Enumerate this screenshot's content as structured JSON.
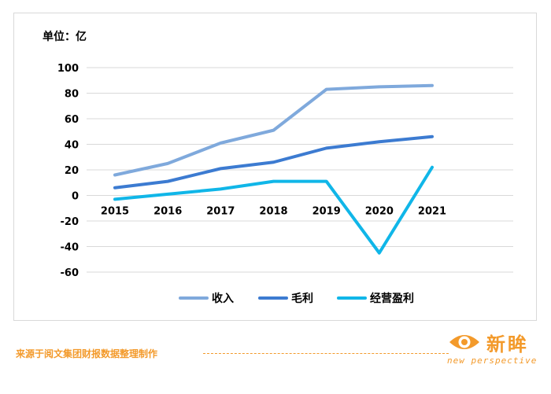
{
  "chart_data": {
    "type": "line",
    "title": "",
    "unit_label": "单位：亿",
    "xlabel": "",
    "ylabel": "",
    "categories": [
      "2015",
      "2016",
      "2017",
      "2018",
      "2019",
      "2020",
      "2021"
    ],
    "series": [
      {
        "name": "收入",
        "color": "#7fa9dc",
        "values": [
          16,
          25,
          41,
          51,
          83,
          85,
          86
        ]
      },
      {
        "name": "毛利",
        "color": "#3c7bd1",
        "values": [
          6,
          11,
          21,
          26,
          37,
          42,
          46
        ]
      },
      {
        "name": "经营盈利",
        "color": "#10b6e8",
        "values": [
          -3,
          1,
          5,
          11,
          11,
          -45,
          22
        ]
      }
    ],
    "ylim": [
      -60,
      100
    ],
    "yticks": [
      "100",
      "80",
      "60",
      "40",
      "20",
      "0",
      "-20",
      "-40",
      "-60"
    ],
    "grid": true,
    "legend_position": "bottom"
  },
  "footer": {
    "source": "来源于阅文集团财报数据整理制作",
    "brand_name": "新眸",
    "brand_sub": "new perspective",
    "brand_color": "#f39a2b"
  }
}
